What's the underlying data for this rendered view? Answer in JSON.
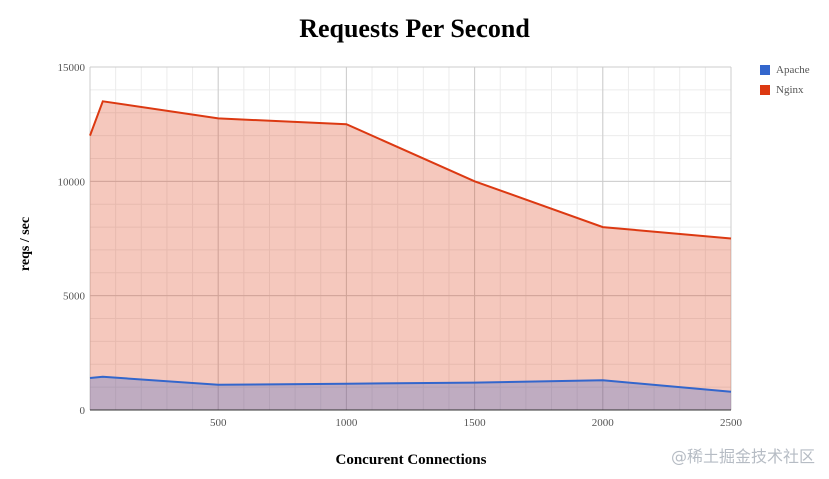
{
  "chart_data": {
    "type": "area",
    "title": "Requests Per Second",
    "xlabel": "Concurent Connections",
    "ylabel": "reqs / sec",
    "xlim": [
      0,
      2500
    ],
    "ylim": [
      0,
      15000
    ],
    "x_ticks": [
      "500",
      "1000",
      "1500",
      "2000",
      "2500"
    ],
    "y_ticks": [
      "0",
      "5000",
      "10000",
      "15000"
    ],
    "legend_position": "right",
    "grid": true,
    "series": [
      {
        "name": "Apache",
        "color": "#3366cc",
        "x": [
          0,
          50,
          500,
          1000,
          1500,
          2000,
          2500
        ],
        "y": [
          1400,
          1450,
          1100,
          1150,
          1200,
          1300,
          800
        ]
      },
      {
        "name": "Nginx",
        "color": "#dc3912",
        "x": [
          0,
          50,
          500,
          1000,
          1500,
          2000,
          2500
        ],
        "y": [
          12000,
          13500,
          12750,
          12500,
          10000,
          8000,
          7500
        ]
      }
    ]
  },
  "watermark": "@稀土掘金技术社区"
}
